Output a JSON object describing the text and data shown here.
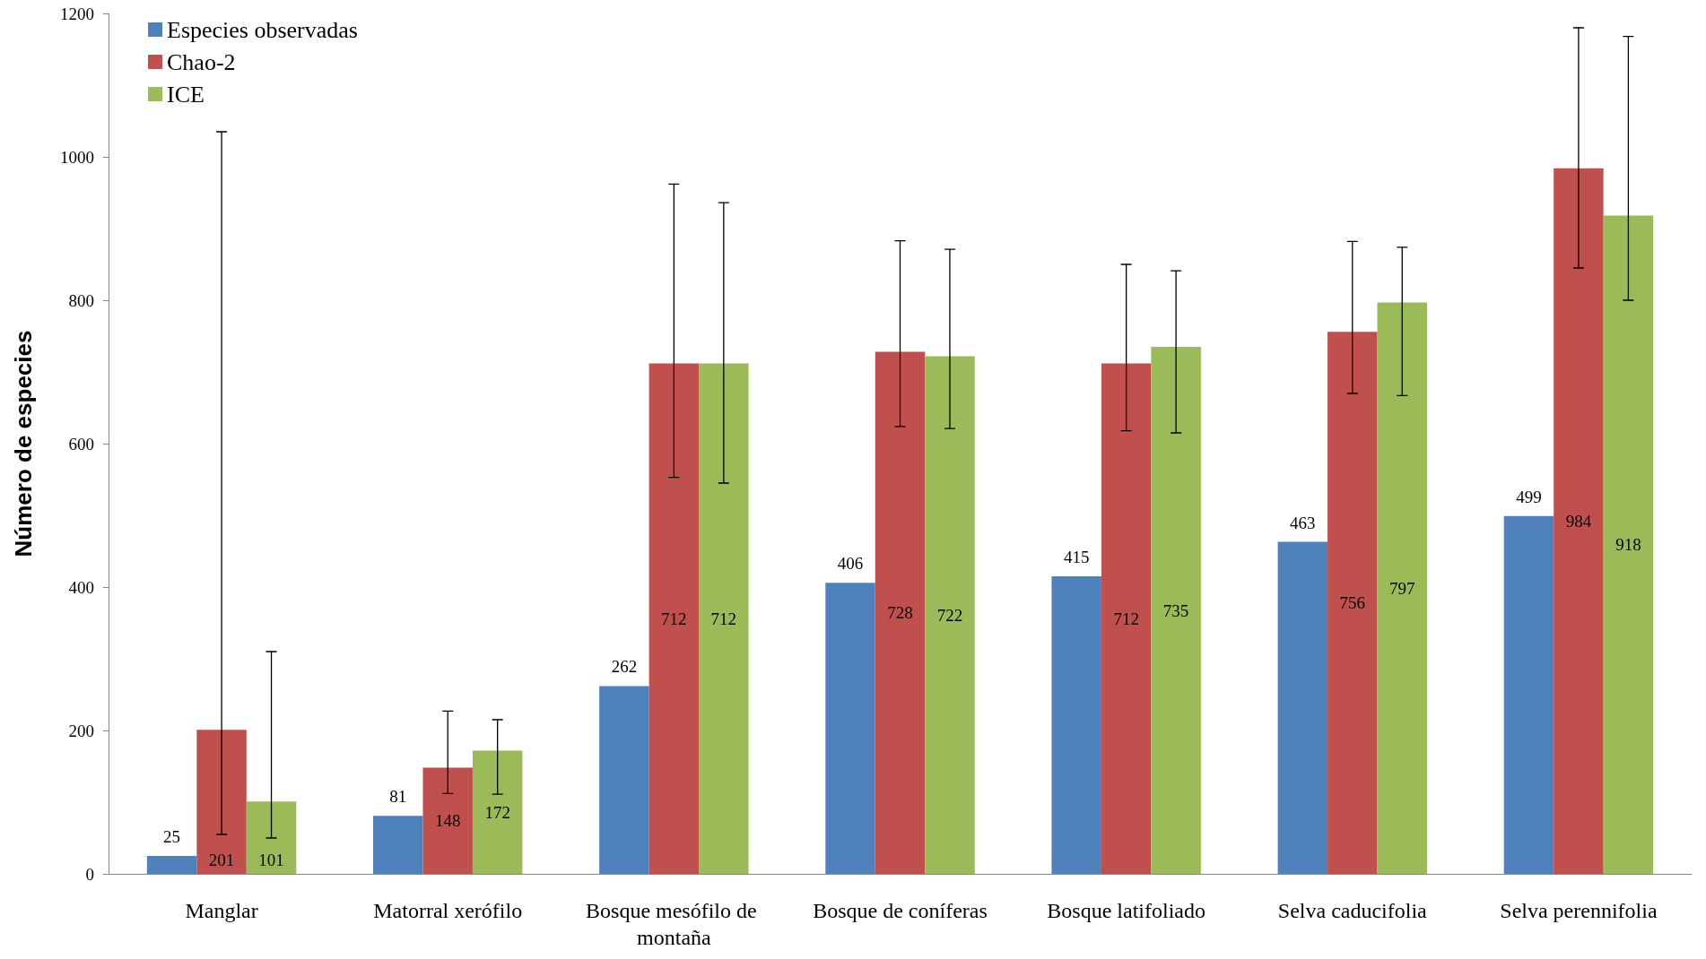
{
  "chart_data": {
    "type": "bar",
    "ylabel": "Número de especies",
    "categories": [
      "Manglar",
      "Matorral xerófilo",
      "Bosque mesófilo de montaña",
      "Bosque de coníferas",
      "Bosque latifoliado",
      "Selva caducifolia",
      "Selva perennifolia"
    ],
    "series": [
      {
        "name": "Especies observadas",
        "color": "#4f81bd",
        "values": [
          25,
          81,
          262,
          406,
          415,
          463,
          499
        ]
      },
      {
        "name": "Chao-2",
        "color": "#c0504d",
        "values": [
          201,
          148,
          712,
          728,
          712,
          756,
          984
        ],
        "errors": [
          [
            55,
            1035
          ],
          [
            112,
            227
          ],
          [
            553,
            962
          ],
          [
            624,
            883
          ],
          [
            618,
            850
          ],
          [
            670,
            882
          ],
          [
            845,
            1180
          ]
        ]
      },
      {
        "name": "ICE",
        "color": "#9bbb59",
        "values": [
          101,
          172,
          712,
          722,
          735,
          797,
          918
        ],
        "errors": [
          [
            50,
            310
          ],
          [
            111,
            215
          ],
          [
            545,
            936
          ],
          [
            621,
            871
          ],
          [
            615,
            841
          ],
          [
            667,
            874
          ],
          [
            800,
            1168
          ]
        ]
      }
    ],
    "ylim": [
      0,
      1200
    ],
    "yticks": [
      0,
      200,
      400,
      600,
      800,
      1000,
      1200
    ],
    "grid": false,
    "legend": "top left",
    "data_labels": true
  }
}
